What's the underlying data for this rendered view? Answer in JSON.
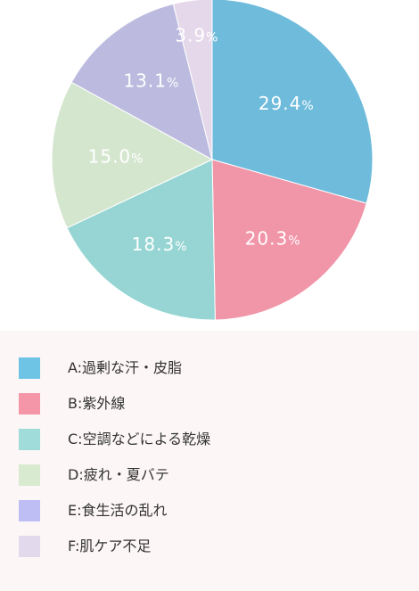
{
  "chart_data": {
    "type": "pie",
    "start_angle": "top (12 o'clock), clockwise",
    "categories": [
      "A:過剰な汗・皮脂",
      "B:紫外線",
      "C:空調などによる乾燥",
      "D:疲れ・夏バテ",
      "E:食生活の乱れ",
      "F:肌ケア不足"
    ],
    "values": [
      29.4,
      20.3,
      18.3,
      15.0,
      13.1,
      3.9
    ],
    "value_labels": [
      "29.4",
      "20.3",
      "18.3",
      "15.0",
      "13.1",
      "3.9"
    ],
    "unit": "%",
    "colors": [
      "#6ebbdc",
      "#f195a8",
      "#96d5d3",
      "#d5e6cf",
      "#bcbbdf",
      "#e5d8ea"
    ],
    "legend_colors": [
      "#6dc4e4",
      "#f596a8",
      "#9fdcda",
      "#d8ead0",
      "#bebef5",
      "#e3d9ec"
    ],
    "legend_placement": "bottom"
  }
}
